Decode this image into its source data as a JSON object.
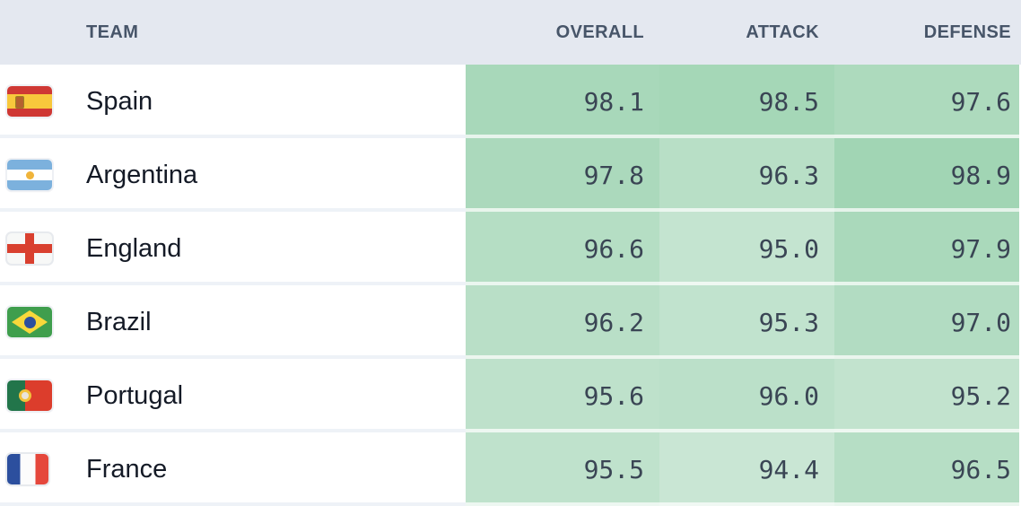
{
  "table": {
    "columns": [
      {
        "key": "team",
        "label": "TEAM"
      },
      {
        "key": "overall",
        "label": "OVERALL"
      },
      {
        "key": "attack",
        "label": "ATTACK"
      },
      {
        "key": "defense",
        "label": "DEFENSE"
      }
    ],
    "rows": [
      {
        "team": "Spain",
        "flag": "spain-flag-icon",
        "overall": "98.1",
        "attack": "98.5",
        "defense": "97.6"
      },
      {
        "team": "Argentina",
        "flag": "argentina-flag-icon",
        "overall": "97.8",
        "attack": "96.3",
        "defense": "98.9"
      },
      {
        "team": "England",
        "flag": "england-flag-icon",
        "overall": "96.6",
        "attack": "95.0",
        "defense": "97.9"
      },
      {
        "team": "Brazil",
        "flag": "brazil-flag-icon",
        "overall": "96.2",
        "attack": "95.3",
        "defense": "97.0"
      },
      {
        "team": "Portugal",
        "flag": "portugal-flag-icon",
        "overall": "95.6",
        "attack": "96.0",
        "defense": "95.2"
      },
      {
        "team": "France",
        "flag": "france-flag-icon",
        "overall": "95.5",
        "attack": "94.4",
        "defense": "96.5"
      }
    ]
  },
  "heatmap": {
    "min": 94.4,
    "max": 98.9,
    "min_color": "#c9e6d4",
    "max_color": "#a1d5b4"
  },
  "colors": {
    "header_bg": "#e4e8f0",
    "header_text": "#475569",
    "team_text": "#141a26",
    "number_text": "#3a4554",
    "separator": "#eef2f7"
  }
}
